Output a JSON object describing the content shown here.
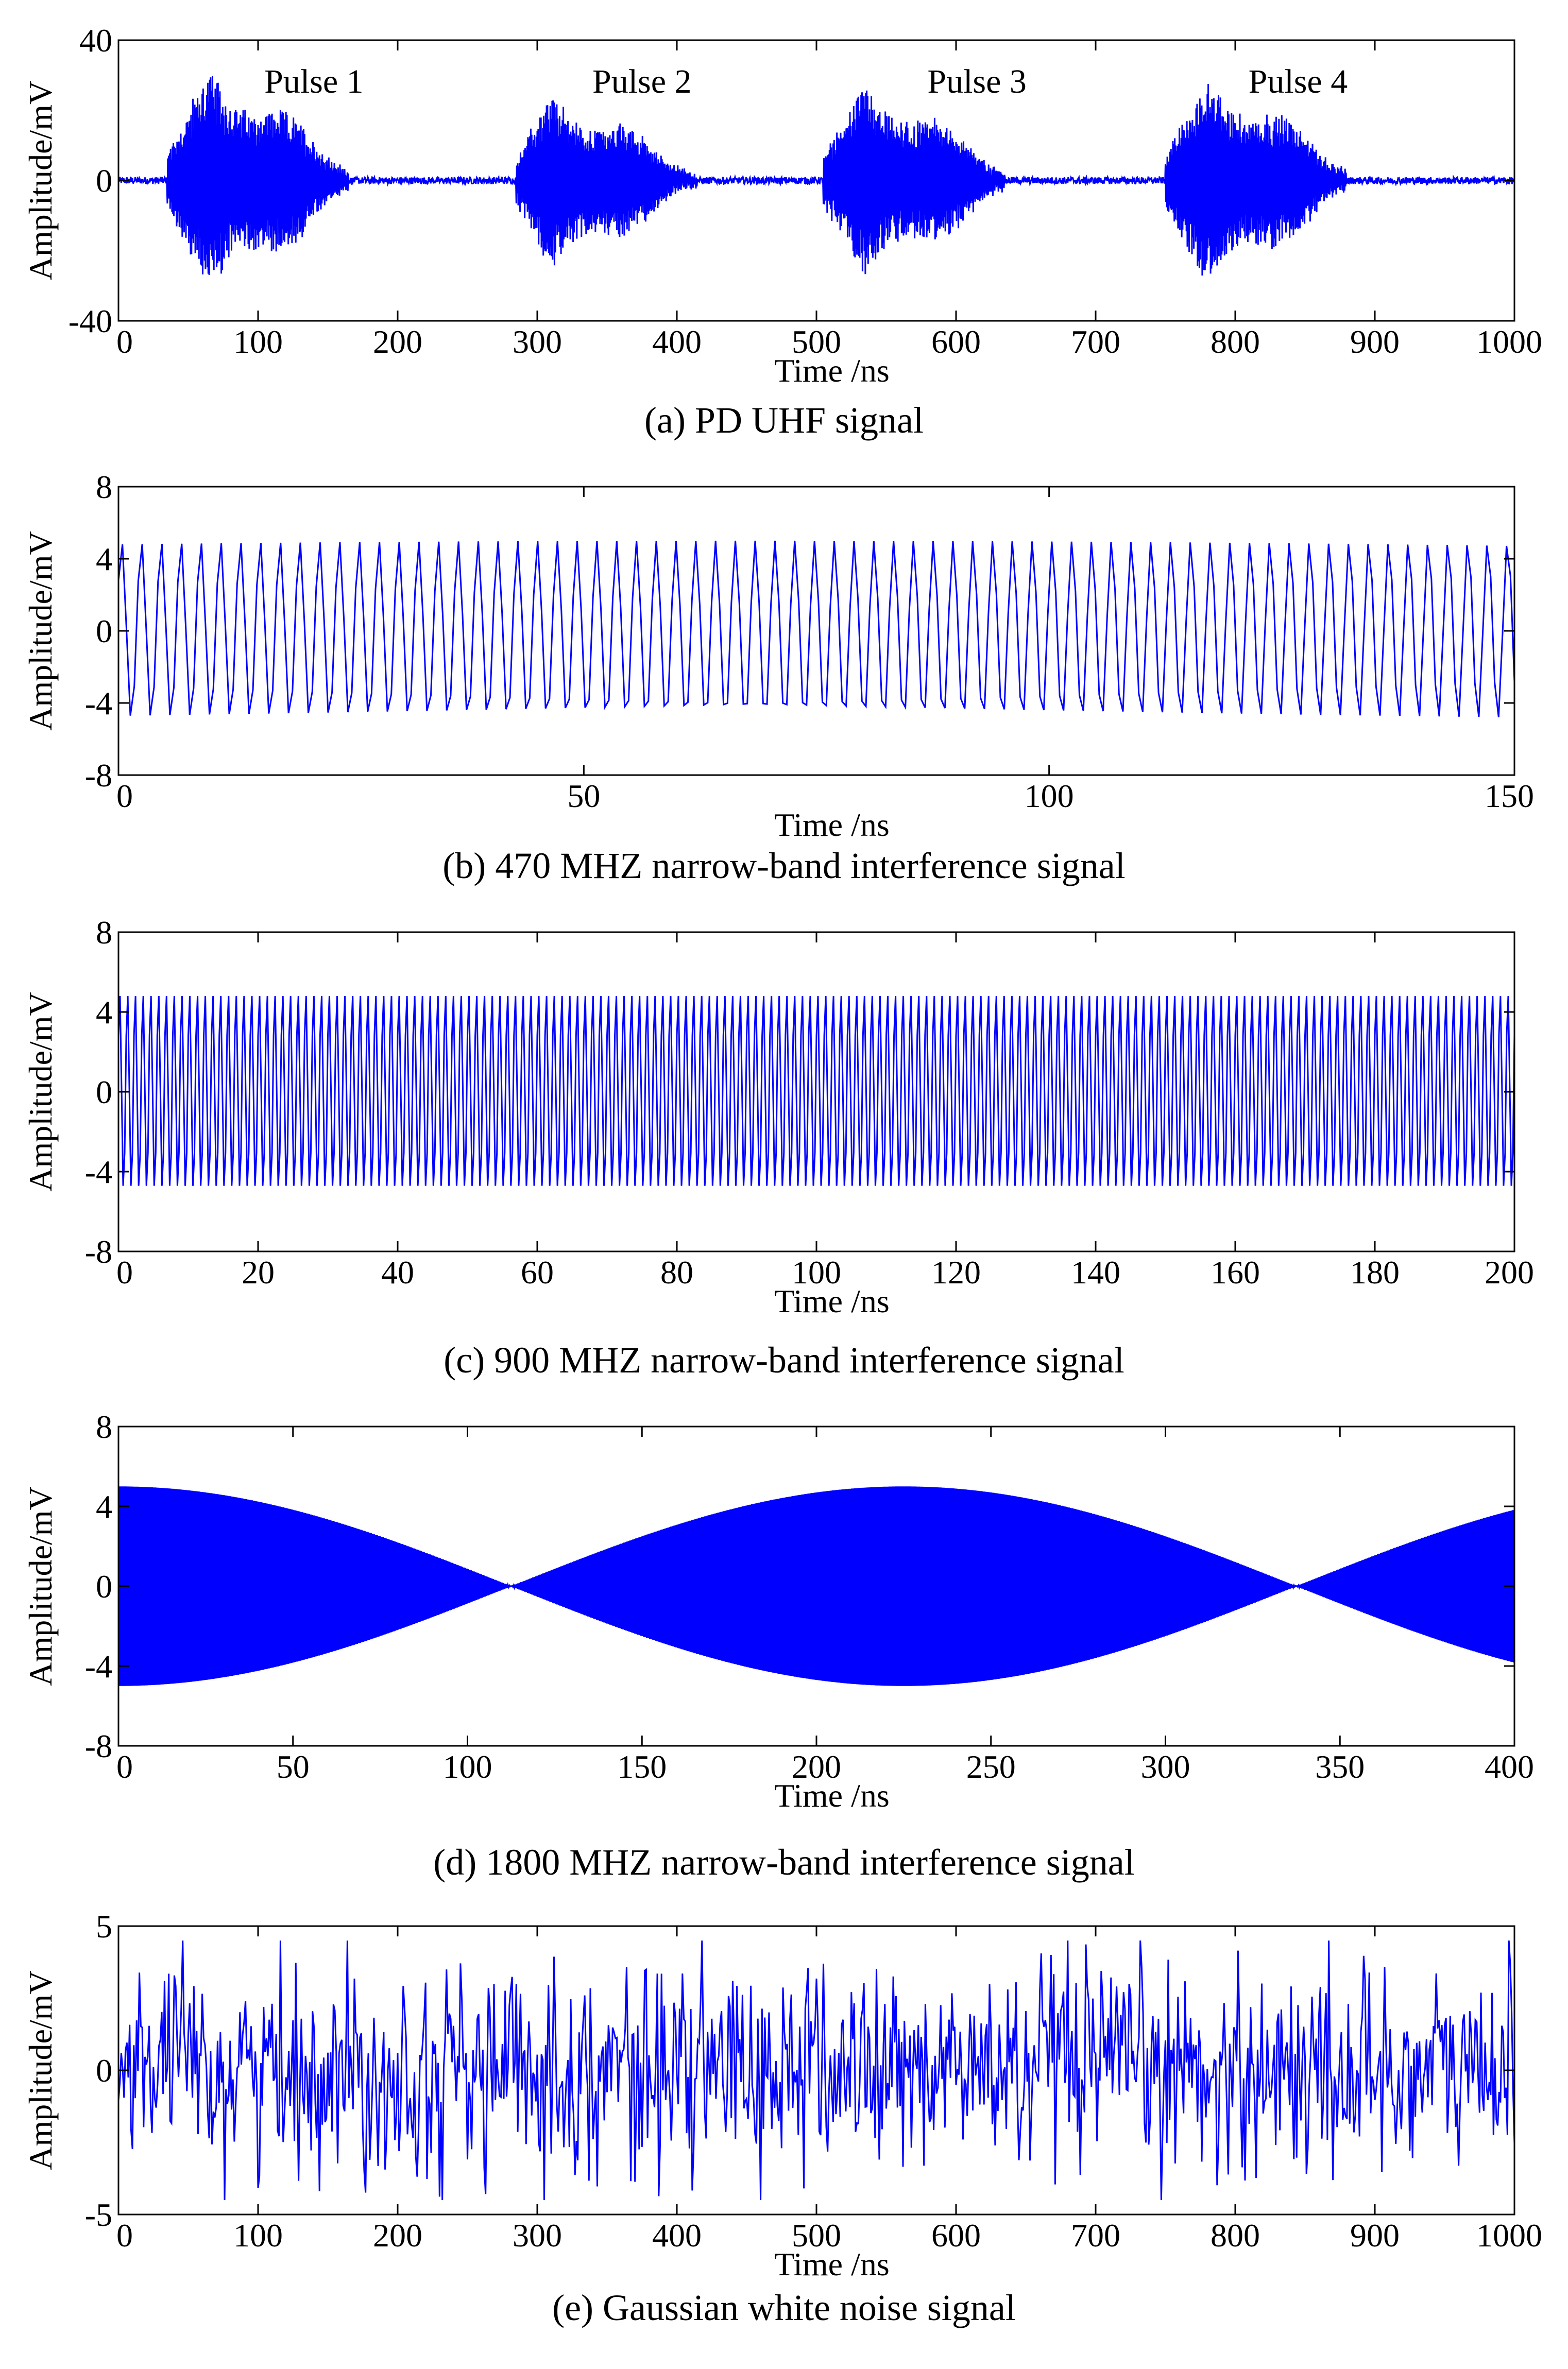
{
  "figure": {
    "signal_color": "#0000FF",
    "axis_color": "#000000",
    "background": "#FFFFFF"
  },
  "chart_data": [
    {
      "type": "line",
      "caption": "(a) PD UHF signal",
      "xlabel": "Time /ns",
      "ylabel": "Amplitude/mV",
      "xlim": [
        0,
        1000
      ],
      "ylim": [
        -40,
        40
      ],
      "xticks": [
        "0",
        "100",
        "200",
        "300",
        "400",
        "500",
        "600",
        "700",
        "800",
        "900",
        "1000"
      ],
      "xtick_values": [
        0,
        100,
        200,
        300,
        400,
        500,
        600,
        700,
        800,
        900,
        1000
      ],
      "yticks": [
        "40",
        "0",
        "-40"
      ],
      "ytick_values": [
        40,
        0,
        -40
      ],
      "grid": false,
      "series": [
        {
          "name": "PD UHF signal",
          "kind": "pd_pulses",
          "pulses": [
            {
              "start": 35,
              "peak_time": 65,
              "peak": 32
            },
            {
              "start": 285,
              "peak_time": 310,
              "peak": 25
            },
            {
              "start": 505,
              "peak_time": 535,
              "peak": 27
            },
            {
              "start": 750,
              "peak_time": 780,
              "peak": 30
            }
          ],
          "noise": 1
        }
      ],
      "annotations": [
        {
          "text": "Pulse 1",
          "x": 140,
          "y": 25
        },
        {
          "text": "Pulse 2",
          "x": 375,
          "y": 25
        },
        {
          "text": "Pulse 3",
          "x": 615,
          "y": 25
        },
        {
          "text": "Pulse 4",
          "x": 845,
          "y": 25
        }
      ]
    },
    {
      "type": "line",
      "caption": "(b) 470 MHZ narrow-band interference signal",
      "xlabel": "Time /ns",
      "ylabel": "Amplitude/mV",
      "xlim": [
        0,
        150
      ],
      "ylim": [
        -8,
        8
      ],
      "xticks": [
        "0",
        "50",
        "100",
        "150"
      ],
      "xtick_values": [
        0,
        50,
        100,
        150
      ],
      "yticks": [
        "8",
        "4",
        "0",
        "-4",
        "-8"
      ],
      "ytick_values": [
        8,
        4,
        0,
        -4,
        -8
      ],
      "grid": false,
      "series": [
        {
          "name": "470 MHz",
          "kind": "sine",
          "frequency_mhz": 470,
          "amplitude": 5
        }
      ]
    },
    {
      "type": "line",
      "caption": "(c) 900 MHZ narrow-band interference signal",
      "xlabel": "Time /ns",
      "ylabel": "Amplitude/mV",
      "xlim": [
        0,
        200
      ],
      "ylim": [
        -8,
        8
      ],
      "xticks": [
        "0",
        "20",
        "40",
        "60",
        "80",
        "100",
        "120",
        "140",
        "160",
        "180",
        "200"
      ],
      "xtick_values": [
        0,
        20,
        40,
        60,
        80,
        100,
        120,
        140,
        160,
        180,
        200
      ],
      "yticks": [
        "8",
        "4",
        "0",
        "-4",
        "-8"
      ],
      "ytick_values": [
        8,
        4,
        0,
        -4,
        -8
      ],
      "grid": false,
      "series": [
        {
          "name": "900 MHz",
          "kind": "sine",
          "frequency_mhz": 900,
          "amplitude": 5
        }
      ]
    },
    {
      "type": "line",
      "caption": "(d) 1800 MHZ narrow-band interference signal",
      "xlabel": "Time /ns",
      "ylabel": "Amplitude/mV",
      "xlim": [
        0,
        400
      ],
      "ylim": [
        -8,
        8
      ],
      "xticks": [
        "0",
        "50",
        "100",
        "150",
        "200",
        "250",
        "300",
        "350",
        "400"
      ],
      "xtick_values": [
        0,
        50,
        100,
        150,
        200,
        250,
        300,
        350,
        400
      ],
      "yticks": [
        "8",
        "4",
        "0",
        "-4",
        "-8"
      ],
      "ytick_values": [
        8,
        4,
        0,
        -4,
        -8
      ],
      "grid": false,
      "series": [
        {
          "name": "1800 MHz",
          "kind": "beat",
          "frequency_mhz": 1800,
          "amplitude": 5,
          "envelope_zeros_ns": [
            113,
            338
          ],
          "envelope_peak_ns": 225
        }
      ]
    },
    {
      "type": "line",
      "caption": "(e) Gaussian white noise signal",
      "xlabel": "Time /ns",
      "ylabel": "Amplitude/mV",
      "xlim": [
        0,
        1000
      ],
      "ylim": [
        -5,
        5
      ],
      "xticks": [
        "0",
        "100",
        "200",
        "300",
        "400",
        "500",
        "600",
        "700",
        "800",
        "900",
        "1000"
      ],
      "xtick_values": [
        0,
        100,
        200,
        300,
        400,
        500,
        600,
        700,
        800,
        900,
        1000
      ],
      "yticks": [
        "5",
        "0",
        "-5"
      ],
      "ytick_values": [
        5,
        0,
        -5
      ],
      "grid": false,
      "series": [
        {
          "name": "Gaussian white noise",
          "kind": "noise",
          "sigma": 1.8,
          "max_abs": 4.5
        }
      ]
    }
  ]
}
